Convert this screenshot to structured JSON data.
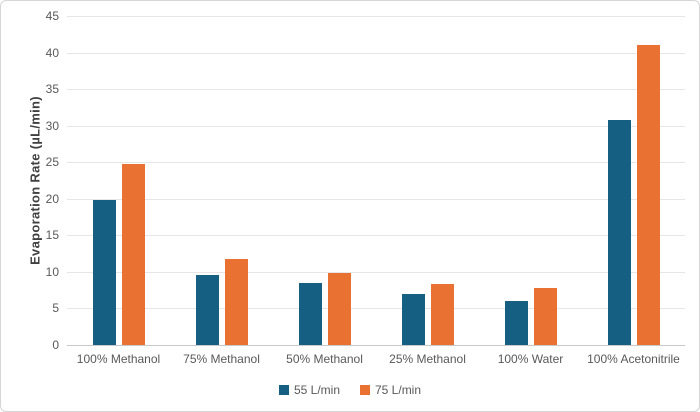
{
  "chart_data": {
    "type": "bar",
    "title": "",
    "xlabel": "",
    "ylabel": "Evaporation Rate (µL/min)",
    "ylim": [
      0,
      45
    ],
    "ytick_step": 5,
    "grid": true,
    "legend_position": "bottom-center",
    "categories": [
      "100% Methanol",
      "75% Methanol",
      "50% Methanol",
      "25% Methanol",
      "100% Water",
      "100% Acetonitrile"
    ],
    "series": [
      {
        "name": "55 L/min",
        "color": "#156082",
        "values": [
          19.8,
          9.6,
          8.5,
          7.0,
          6.0,
          30.8
        ]
      },
      {
        "name": "75 L/min",
        "color": "#E97132",
        "values": [
          24.8,
          11.7,
          9.9,
          8.4,
          7.8,
          41.1
        ]
      }
    ],
    "colors": {
      "gridline": "#e6e6e6",
      "axis_line": "#c9c9c9",
      "tick_text": "#595959",
      "axis_title_text": "#404040"
    }
  }
}
